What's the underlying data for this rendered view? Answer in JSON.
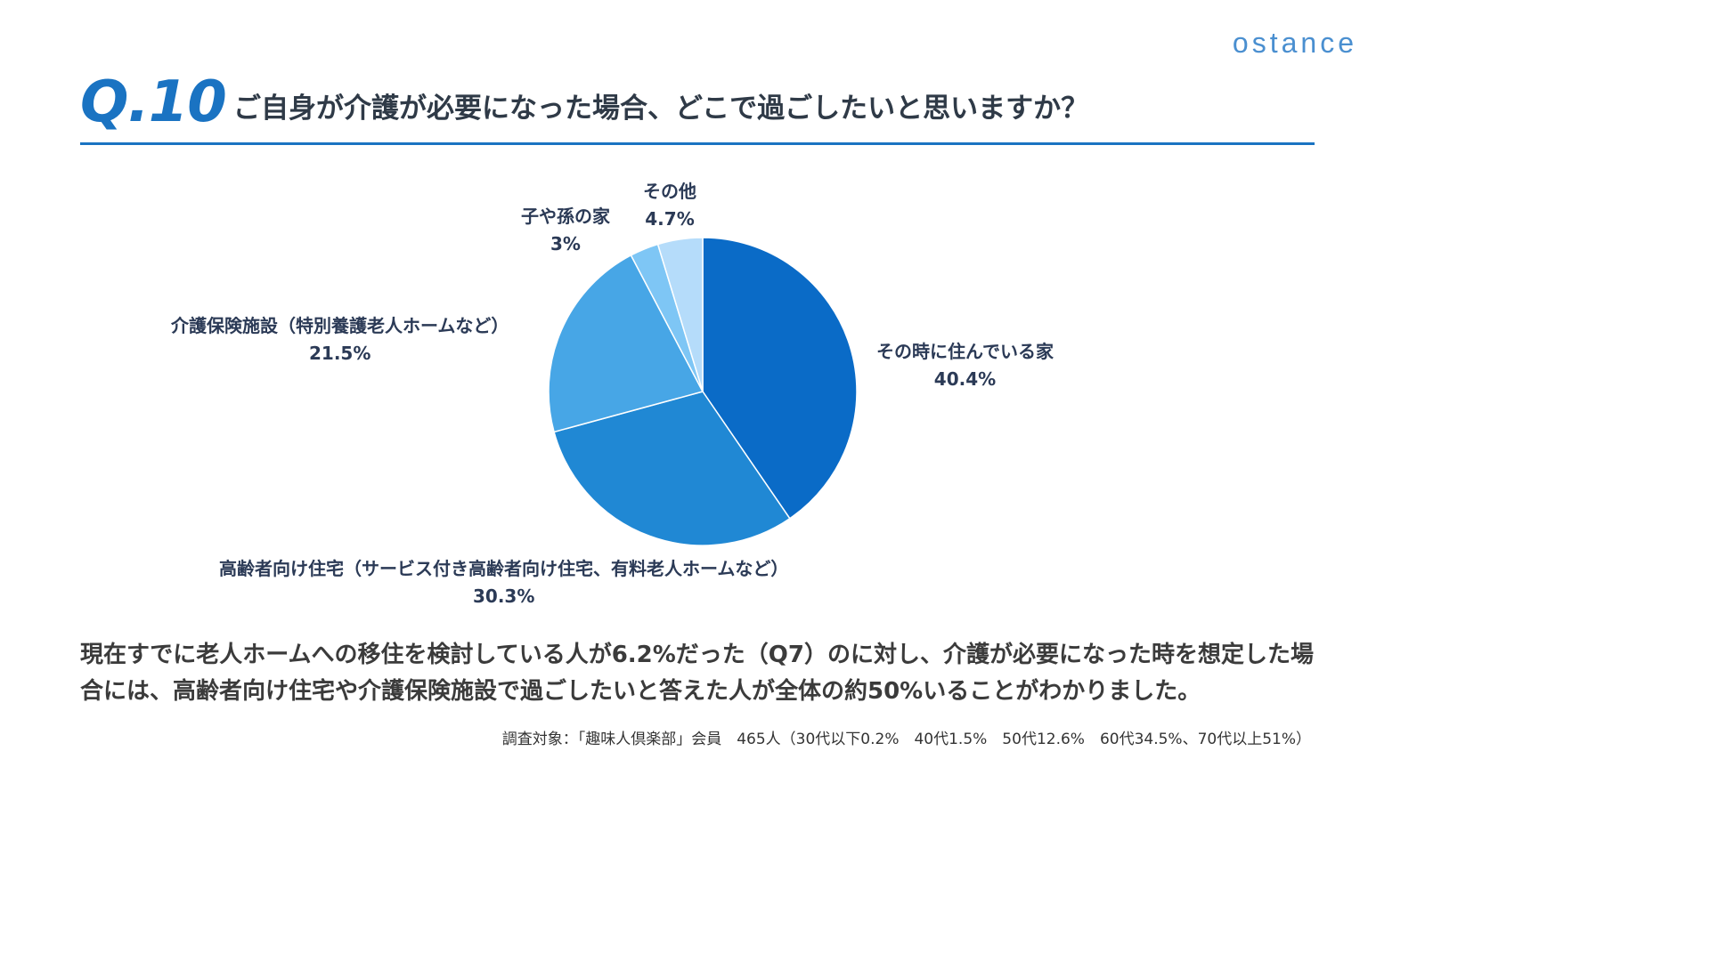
{
  "brand": {
    "logo_text": "ostance"
  },
  "header": {
    "question_number": "Q.10",
    "question_text": "ご自身が介護が必要になった場合、どこで過ごしたいと思いますか？"
  },
  "chart_data": {
    "type": "pie",
    "start": "12 o'clock, clockwise",
    "slices": [
      {
        "label": "その時に住んでいる家",
        "value": 40.4,
        "value_text": "40.4%",
        "color": "#0a6bc7"
      },
      {
        "label": "高齢者向け住宅（サービス付き高齢者向け住宅、有料老人ホームなど）",
        "value": 30.3,
        "value_text": "30.3%",
        "color": "#2088d4"
      },
      {
        "label": "介護保険施設（特別養護老人ホームなど）",
        "value": 21.5,
        "value_text": "21.5%",
        "color": "#47a6e6"
      },
      {
        "label": "子や孫の家",
        "value": 3,
        "value_text": "3%",
        "color": "#7ec6f5"
      },
      {
        "label": "その他",
        "value": 4.7,
        "value_text": "4.7%",
        "color": "#b5dcfa"
      }
    ]
  },
  "summary": {
    "text": "現在すでに老人ホームへの移住を検討している人が6.2%だった（Q7）のに対し、介護が必要になった時を想定した場合には、高齢者向け住宅や介護保険施設で過ごしたいと答えた人が全体の約50%いることがわかりました。"
  },
  "footnote": {
    "text": "調査対象：「趣味人倶楽部」会員　465人（30代以下0.2%　40代1.5%　50代12.6%　60代34.5%、70代以上51%）"
  }
}
